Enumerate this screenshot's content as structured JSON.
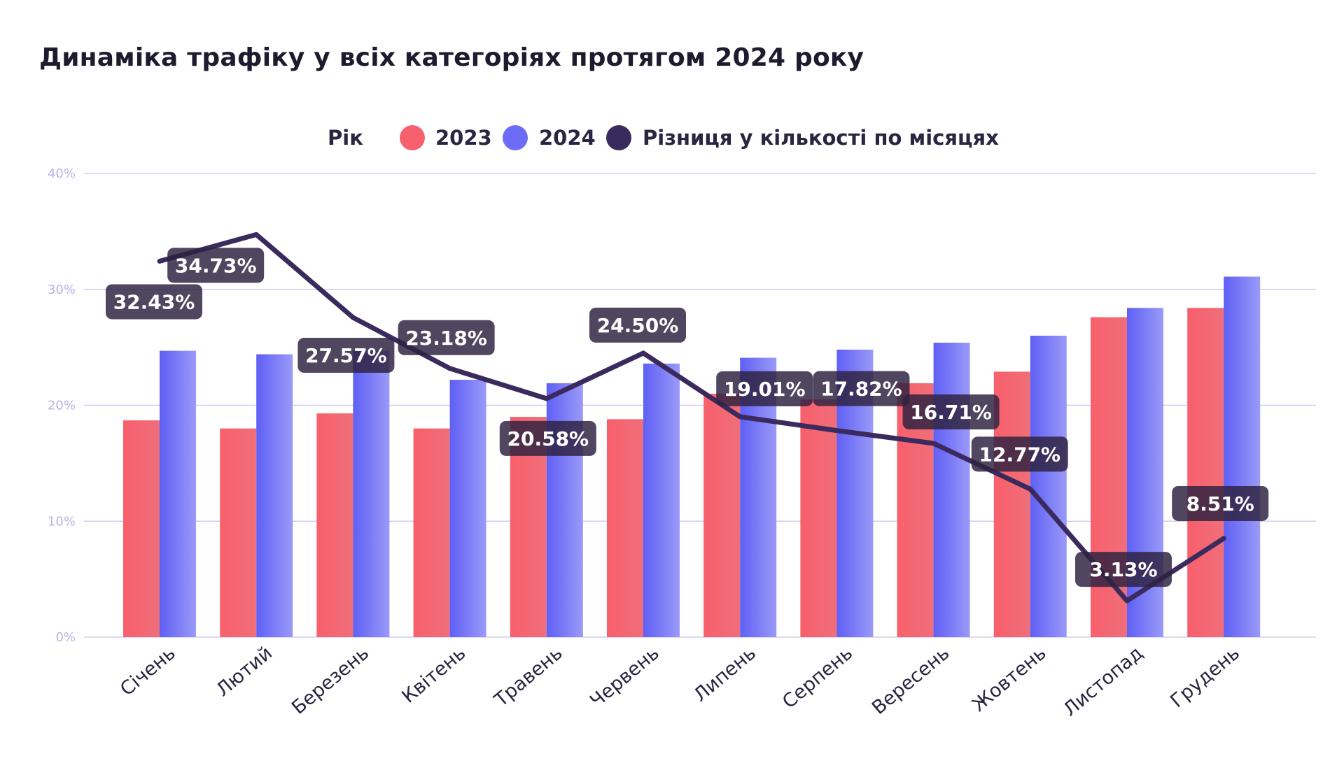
{
  "title": "Динаміка трафіку у всіх категоріях протягом 2024 року",
  "chart_data": {
    "type": "bar",
    "title": "Динаміка трафіку у всіх категоріях протягом 2024 року",
    "legend_title": "Рік",
    "legend_position": "top-center",
    "categories": [
      "Січень",
      "Лютий",
      "Березень",
      "Квітень",
      "Травень",
      "Червень",
      "Липень",
      "Серпень",
      "Вересень",
      "Жовтень",
      "Листопад",
      "Грудень"
    ],
    "series": [
      {
        "name": "2023",
        "type": "bar",
        "color": "#f6616d",
        "values": [
          18.7,
          18.0,
          19.3,
          18.0,
          19.0,
          18.8,
          21.0,
          20.5,
          21.9,
          22.9,
          27.6,
          28.4
        ]
      },
      {
        "name": "2024",
        "type": "bar",
        "color": "#6c6cf6",
        "values": [
          24.7,
          24.4,
          24.7,
          22.2,
          21.9,
          23.6,
          24.1,
          24.8,
          25.4,
          26.0,
          28.4,
          31.1
        ]
      },
      {
        "name": "Різниця у кількості по місяцях",
        "type": "line",
        "color": "#3b2a5e",
        "values": [
          32.43,
          34.73,
          27.57,
          23.18,
          20.58,
          24.5,
          19.01,
          17.82,
          16.71,
          12.77,
          3.13,
          8.51
        ],
        "labels": [
          "32.43%",
          "34.73%",
          "27.57%",
          "23.18%",
          "20.58%",
          "24.50%",
          "19.01%",
          "17.82%",
          "16.71%",
          "12.77%",
          "3.13%",
          "8.51%"
        ]
      }
    ],
    "ylim": [
      0,
      40
    ],
    "yticks": [
      0,
      10,
      20,
      30,
      40
    ],
    "ytick_labels": [
      "0%",
      "10%",
      "20%",
      "30%",
      "40%"
    ],
    "grid": true,
    "xlabel": "",
    "ylabel": ""
  }
}
